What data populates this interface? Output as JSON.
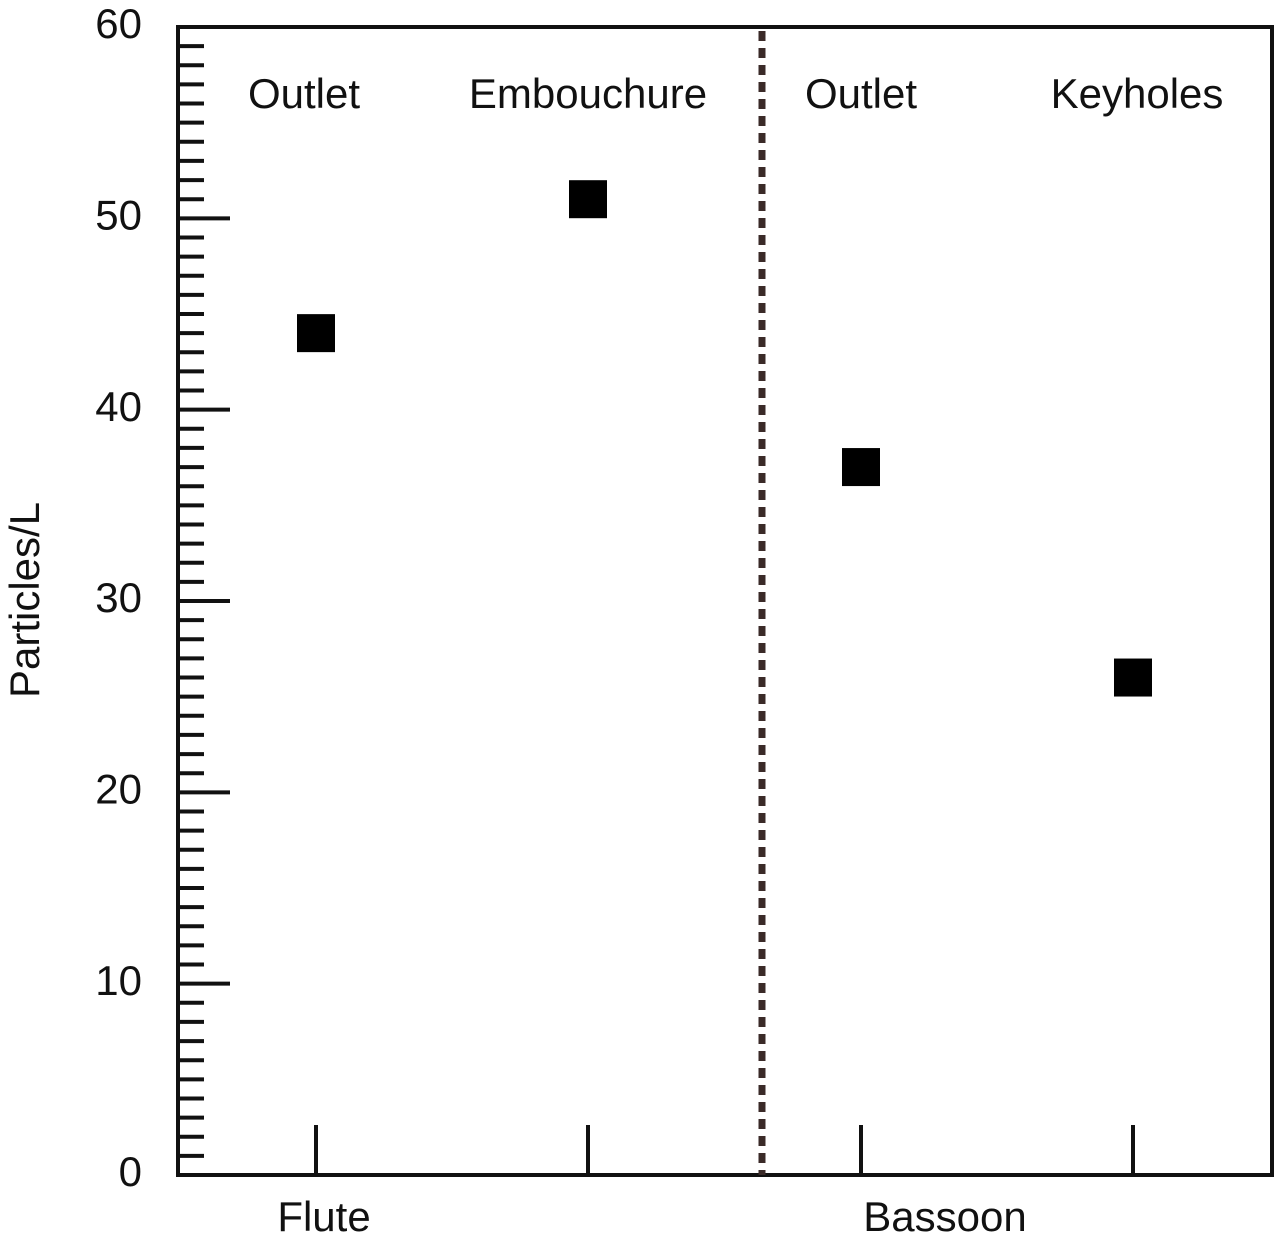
{
  "chart_data": {
    "type": "dot",
    "y_label": "Particles/L",
    "categories": [
      "Outlet",
      "Embouchure",
      "Outlet",
      "Keyholes"
    ],
    "groups": [
      "Flute",
      "Bassoon"
    ],
    "values": [
      44,
      51,
      37,
      26
    ],
    "color": "#000000",
    "divider_color": "#3a2a28",
    "ylim": [
      0,
      60
    ],
    "yticks": [
      0,
      10,
      20,
      30,
      40,
      50,
      60
    ],
    "yminorticks": [
      1,
      2,
      3,
      4,
      5,
      6,
      7,
      8,
      9,
      11,
      12,
      13,
      14,
      15,
      16,
      17,
      18,
      19,
      21,
      22,
      23,
      24,
      25,
      26,
      27,
      28,
      29,
      31,
      32,
      33,
      34,
      35,
      36,
      37,
      38,
      39,
      41,
      42,
      43,
      44,
      45,
      46,
      47,
      48,
      49,
      51,
      52,
      53,
      54,
      55,
      56,
      57,
      58,
      59
    ]
  }
}
